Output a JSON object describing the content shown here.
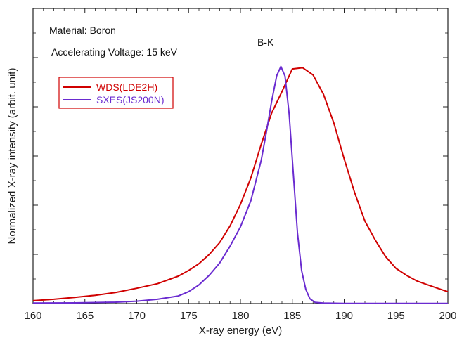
{
  "chart_data": {
    "type": "line",
    "title": "",
    "xlabel": "X-ray energy (eV)",
    "ylabel": "Normalized X-ray intensity (arbit. unit)",
    "xlim": [
      160,
      200
    ],
    "ylim": [
      0,
      1.0
    ],
    "x_ticks": [
      160,
      165,
      170,
      175,
      180,
      185,
      190,
      195,
      200
    ],
    "x_tick_labels": [
      "160",
      "165",
      "170",
      "175",
      "180",
      "185",
      "190",
      "195",
      "200"
    ],
    "y_tick_labels_shown": false,
    "grid": false,
    "legend": {
      "placement": "upper-left"
    },
    "annotations": {
      "material": "Material: Boron",
      "voltage": "Accelerating Voltage: 15 keV",
      "peak_label": "B-K"
    },
    "series": [
      {
        "name": "WDS(LDE2H)",
        "color": "#d00000",
        "x": [
          160,
          162,
          164,
          166,
          168,
          170,
          172,
          174,
          175,
          176,
          177,
          178,
          179,
          180,
          181,
          182,
          183,
          184,
          185,
          186,
          187,
          188,
          189,
          190,
          191,
          192,
          193,
          194,
          195,
          196,
          197,
          198,
          199,
          200
        ],
        "y": [
          0.012,
          0.018,
          0.026,
          0.035,
          0.047,
          0.062,
          0.082,
          0.115,
          0.14,
          0.17,
          0.21,
          0.26,
          0.33,
          0.42,
          0.53,
          0.67,
          0.8,
          0.89,
          0.985,
          0.99,
          0.96,
          0.88,
          0.76,
          0.61,
          0.47,
          0.35,
          0.27,
          0.2,
          0.15,
          0.12,
          0.095,
          0.078,
          0.062,
          0.05
        ]
      },
      {
        "name": "SXES(JS200N)",
        "color": "#6a2bd0",
        "x": [
          160,
          164,
          168,
          170,
          172,
          174,
          175,
          176,
          177,
          178,
          179,
          180,
          181,
          182,
          182.5,
          183,
          183.5,
          183.9,
          184.3,
          184.7,
          185.1,
          185.5,
          185.9,
          186.3,
          186.7,
          187.2,
          188,
          190,
          195,
          200
        ],
        "y": [
          0.002,
          0.003,
          0.006,
          0.01,
          0.018,
          0.032,
          0.05,
          0.08,
          0.12,
          0.17,
          0.24,
          0.32,
          0.43,
          0.6,
          0.72,
          0.85,
          0.96,
          1.0,
          0.96,
          0.8,
          0.55,
          0.3,
          0.14,
          0.06,
          0.02,
          0.005,
          0.002,
          0.001,
          0.001,
          0.001
        ]
      }
    ]
  }
}
